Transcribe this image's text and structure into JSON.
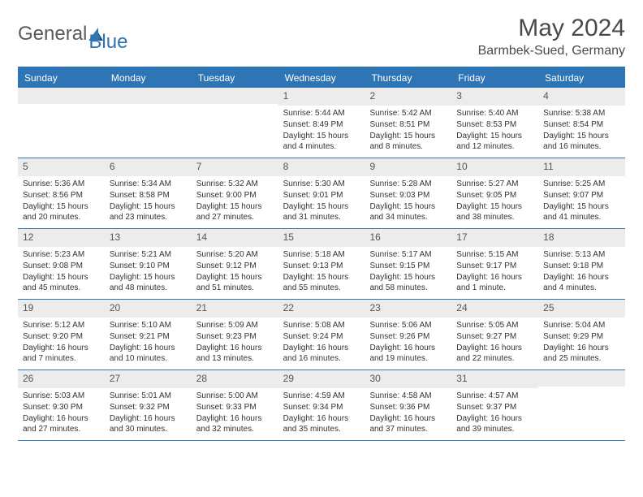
{
  "brand": {
    "name1": "General",
    "name2": "Blue"
  },
  "title": "May 2024",
  "location": "Barmbek-Sued, Germany",
  "day_names": [
    "Sunday",
    "Monday",
    "Tuesday",
    "Wednesday",
    "Thursday",
    "Friday",
    "Saturday"
  ],
  "colors": {
    "header_bg": "#2e75b5",
    "header_text": "#ffffff",
    "daynum_bg": "#ececec",
    "border": "#2e75b5",
    "text": "#333333",
    "title": "#4a4a4a"
  },
  "weeks": [
    [
      {
        "n": "",
        "sunrise": "",
        "sunset": "",
        "daylight": ""
      },
      {
        "n": "",
        "sunrise": "",
        "sunset": "",
        "daylight": ""
      },
      {
        "n": "",
        "sunrise": "",
        "sunset": "",
        "daylight": ""
      },
      {
        "n": "1",
        "sunrise": "Sunrise: 5:44 AM",
        "sunset": "Sunset: 8:49 PM",
        "daylight": "Daylight: 15 hours and 4 minutes."
      },
      {
        "n": "2",
        "sunrise": "Sunrise: 5:42 AM",
        "sunset": "Sunset: 8:51 PM",
        "daylight": "Daylight: 15 hours and 8 minutes."
      },
      {
        "n": "3",
        "sunrise": "Sunrise: 5:40 AM",
        "sunset": "Sunset: 8:53 PM",
        "daylight": "Daylight: 15 hours and 12 minutes."
      },
      {
        "n": "4",
        "sunrise": "Sunrise: 5:38 AM",
        "sunset": "Sunset: 8:54 PM",
        "daylight": "Daylight: 15 hours and 16 minutes."
      }
    ],
    [
      {
        "n": "5",
        "sunrise": "Sunrise: 5:36 AM",
        "sunset": "Sunset: 8:56 PM",
        "daylight": "Daylight: 15 hours and 20 minutes."
      },
      {
        "n": "6",
        "sunrise": "Sunrise: 5:34 AM",
        "sunset": "Sunset: 8:58 PM",
        "daylight": "Daylight: 15 hours and 23 minutes."
      },
      {
        "n": "7",
        "sunrise": "Sunrise: 5:32 AM",
        "sunset": "Sunset: 9:00 PM",
        "daylight": "Daylight: 15 hours and 27 minutes."
      },
      {
        "n": "8",
        "sunrise": "Sunrise: 5:30 AM",
        "sunset": "Sunset: 9:01 PM",
        "daylight": "Daylight: 15 hours and 31 minutes."
      },
      {
        "n": "9",
        "sunrise": "Sunrise: 5:28 AM",
        "sunset": "Sunset: 9:03 PM",
        "daylight": "Daylight: 15 hours and 34 minutes."
      },
      {
        "n": "10",
        "sunrise": "Sunrise: 5:27 AM",
        "sunset": "Sunset: 9:05 PM",
        "daylight": "Daylight: 15 hours and 38 minutes."
      },
      {
        "n": "11",
        "sunrise": "Sunrise: 5:25 AM",
        "sunset": "Sunset: 9:07 PM",
        "daylight": "Daylight: 15 hours and 41 minutes."
      }
    ],
    [
      {
        "n": "12",
        "sunrise": "Sunrise: 5:23 AM",
        "sunset": "Sunset: 9:08 PM",
        "daylight": "Daylight: 15 hours and 45 minutes."
      },
      {
        "n": "13",
        "sunrise": "Sunrise: 5:21 AM",
        "sunset": "Sunset: 9:10 PM",
        "daylight": "Daylight: 15 hours and 48 minutes."
      },
      {
        "n": "14",
        "sunrise": "Sunrise: 5:20 AM",
        "sunset": "Sunset: 9:12 PM",
        "daylight": "Daylight: 15 hours and 51 minutes."
      },
      {
        "n": "15",
        "sunrise": "Sunrise: 5:18 AM",
        "sunset": "Sunset: 9:13 PM",
        "daylight": "Daylight: 15 hours and 55 minutes."
      },
      {
        "n": "16",
        "sunrise": "Sunrise: 5:17 AM",
        "sunset": "Sunset: 9:15 PM",
        "daylight": "Daylight: 15 hours and 58 minutes."
      },
      {
        "n": "17",
        "sunrise": "Sunrise: 5:15 AM",
        "sunset": "Sunset: 9:17 PM",
        "daylight": "Daylight: 16 hours and 1 minute."
      },
      {
        "n": "18",
        "sunrise": "Sunrise: 5:13 AM",
        "sunset": "Sunset: 9:18 PM",
        "daylight": "Daylight: 16 hours and 4 minutes."
      }
    ],
    [
      {
        "n": "19",
        "sunrise": "Sunrise: 5:12 AM",
        "sunset": "Sunset: 9:20 PM",
        "daylight": "Daylight: 16 hours and 7 minutes."
      },
      {
        "n": "20",
        "sunrise": "Sunrise: 5:10 AM",
        "sunset": "Sunset: 9:21 PM",
        "daylight": "Daylight: 16 hours and 10 minutes."
      },
      {
        "n": "21",
        "sunrise": "Sunrise: 5:09 AM",
        "sunset": "Sunset: 9:23 PM",
        "daylight": "Daylight: 16 hours and 13 minutes."
      },
      {
        "n": "22",
        "sunrise": "Sunrise: 5:08 AM",
        "sunset": "Sunset: 9:24 PM",
        "daylight": "Daylight: 16 hours and 16 minutes."
      },
      {
        "n": "23",
        "sunrise": "Sunrise: 5:06 AM",
        "sunset": "Sunset: 9:26 PM",
        "daylight": "Daylight: 16 hours and 19 minutes."
      },
      {
        "n": "24",
        "sunrise": "Sunrise: 5:05 AM",
        "sunset": "Sunset: 9:27 PM",
        "daylight": "Daylight: 16 hours and 22 minutes."
      },
      {
        "n": "25",
        "sunrise": "Sunrise: 5:04 AM",
        "sunset": "Sunset: 9:29 PM",
        "daylight": "Daylight: 16 hours and 25 minutes."
      }
    ],
    [
      {
        "n": "26",
        "sunrise": "Sunrise: 5:03 AM",
        "sunset": "Sunset: 9:30 PM",
        "daylight": "Daylight: 16 hours and 27 minutes."
      },
      {
        "n": "27",
        "sunrise": "Sunrise: 5:01 AM",
        "sunset": "Sunset: 9:32 PM",
        "daylight": "Daylight: 16 hours and 30 minutes."
      },
      {
        "n": "28",
        "sunrise": "Sunrise: 5:00 AM",
        "sunset": "Sunset: 9:33 PM",
        "daylight": "Daylight: 16 hours and 32 minutes."
      },
      {
        "n": "29",
        "sunrise": "Sunrise: 4:59 AM",
        "sunset": "Sunset: 9:34 PM",
        "daylight": "Daylight: 16 hours and 35 minutes."
      },
      {
        "n": "30",
        "sunrise": "Sunrise: 4:58 AM",
        "sunset": "Sunset: 9:36 PM",
        "daylight": "Daylight: 16 hours and 37 minutes."
      },
      {
        "n": "31",
        "sunrise": "Sunrise: 4:57 AM",
        "sunset": "Sunset: 9:37 PM",
        "daylight": "Daylight: 16 hours and 39 minutes."
      },
      {
        "n": "",
        "sunrise": "",
        "sunset": "",
        "daylight": ""
      }
    ]
  ]
}
